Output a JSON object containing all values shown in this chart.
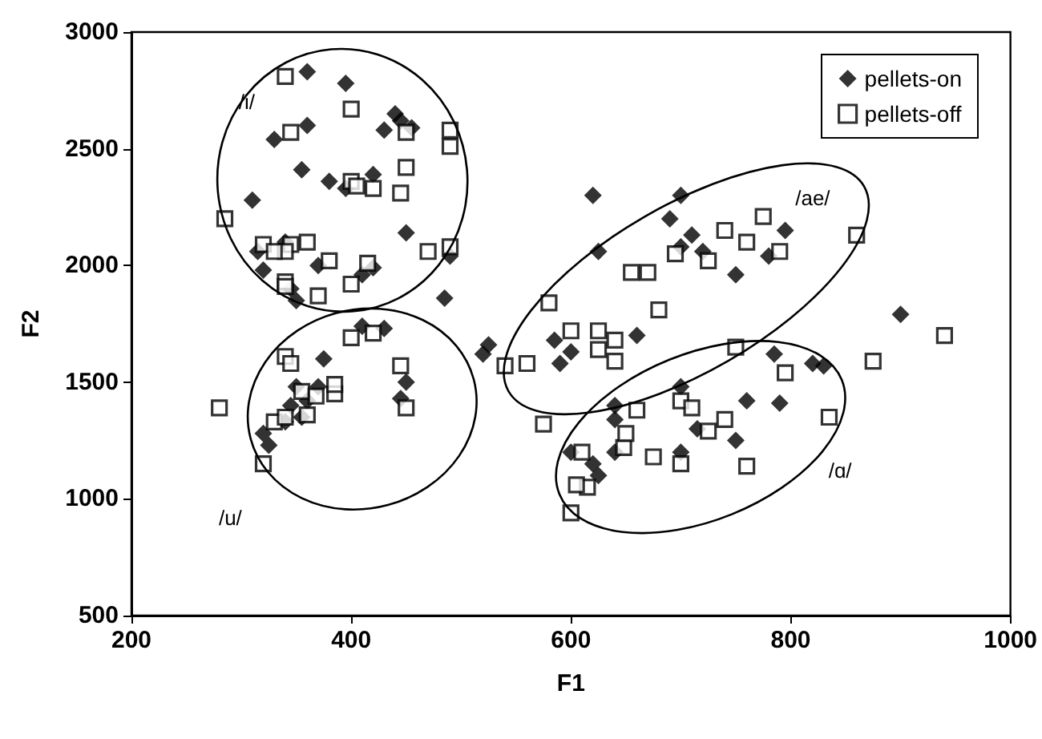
{
  "chart_data": {
    "type": "scatter",
    "xlabel": "F1",
    "ylabel": "F2",
    "xlim": [
      200,
      1000
    ],
    "xticks": [
      200,
      400,
      600,
      800,
      1000
    ],
    "ylim": [
      500,
      3000
    ],
    "yticks": [
      500,
      1000,
      1500,
      2000,
      2500,
      3000
    ],
    "grid": false,
    "legend": "top right",
    "annotations": [
      "/i/",
      "/u/",
      "/ae/",
      "/ɑ/"
    ],
    "series": [
      {
        "name": "pellets-on",
        "color": "#000000",
        "marker": "diamond",
        "x": [
          360,
          395,
          330,
          360,
          355,
          380,
          395,
          440,
          455,
          430,
          420,
          310,
          315,
          320,
          340,
          345,
          350,
          370,
          410,
          420,
          450,
          490,
          485,
          445,
          325,
          320,
          345,
          350,
          360,
          375,
          340,
          355,
          370,
          410,
          430,
          450,
          445,
          520,
          525,
          620,
          700,
          690,
          625,
          590,
          585,
          600,
          660,
          700,
          710,
          720,
          750,
          780,
          795,
          700,
          640,
          640,
          600,
          620,
          625,
          640,
          700,
          715,
          760,
          790,
          785,
          820,
          830,
          900,
          750
        ],
        "values": [
          2830,
          2780,
          2540,
          2600,
          2410,
          2360,
          2330,
          2650,
          2590,
          2580,
          2390,
          2280,
          2060,
          1980,
          2100,
          1900,
          1850,
          2000,
          1960,
          1990,
          2140,
          2040,
          1860,
          2620,
          1230,
          1280,
          1400,
          1480,
          1420,
          1600,
          1330,
          1350,
          1480,
          1740,
          1730,
          1500,
          1430,
          1620,
          1660,
          2300,
          2300,
          2200,
          2060,
          1580,
          1680,
          1630,
          1700,
          2080,
          2130,
          2060,
          1960,
          2040,
          2150,
          1480,
          1400,
          1340,
          1200,
          1150,
          1100,
          1200,
          1200,
          1300,
          1420,
          1410,
          1620,
          1580,
          1570,
          1790,
          1250
        ]
      },
      {
        "name": "pellets-off",
        "color": "#000000",
        "marker": "square",
        "x": [
          340,
          400,
          345,
          450,
          490,
          490,
          450,
          400,
          420,
          405,
          445,
          490,
          470,
          285,
          320,
          345,
          360,
          340,
          380,
          330,
          340,
          340,
          370,
          400,
          415,
          280,
          320,
          330,
          340,
          340,
          345,
          355,
          368,
          360,
          385,
          385,
          400,
          420,
          445,
          450,
          575,
          540,
          560,
          580,
          600,
          625,
          625,
          640,
          640,
          655,
          670,
          680,
          695,
          725,
          740,
          760,
          775,
          790,
          600,
          610,
          615,
          648,
          650,
          660,
          675,
          700,
          710,
          725,
          750,
          760,
          795,
          835,
          860,
          875,
          940,
          605,
          700,
          740
        ],
        "values": [
          2810,
          2670,
          2570,
          2570,
          2580,
          2510,
          2420,
          2360,
          2330,
          2340,
          2310,
          2080,
          2060,
          2200,
          2090,
          2090,
          2100,
          2060,
          2020,
          2060,
          1930,
          1910,
          1870,
          1920,
          2010,
          1390,
          1150,
          1330,
          1350,
          1610,
          1580,
          1460,
          1440,
          1360,
          1450,
          1490,
          1690,
          1710,
          1570,
          1390,
          1320,
          1570,
          1580,
          1840,
          1720,
          1720,
          1640,
          1680,
          1590,
          1970,
          1970,
          1810,
          2050,
          2020,
          2150,
          2100,
          2210,
          2060,
          940,
          1200,
          1050,
          1220,
          1280,
          1380,
          1180,
          1420,
          1390,
          1290,
          1650,
          1140,
          1540,
          1350,
          2130,
          1590,
          1700,
          1060,
          1150,
          1340
        ]
      }
    ]
  }
}
